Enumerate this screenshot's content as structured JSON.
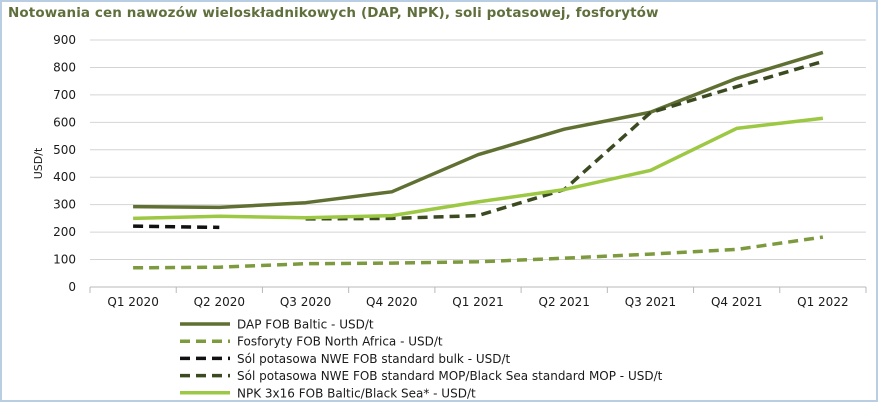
{
  "chart_data": {
    "type": "line",
    "title": "Notowania cen nawozów wieloskładnikowych (DAP, NPK), soli potasowej, fosforytów",
    "ylabel": "USD/t",
    "xlabel": "",
    "ylim": [
      0,
      900
    ],
    "yticks": [
      "0",
      "100",
      "200",
      "300",
      "400",
      "500",
      "600",
      "700",
      "800",
      "900"
    ],
    "categories": [
      "Q1 2020",
      "Q2 2020",
      "Q3 2020",
      "Q4 2020",
      "Q1 2021",
      "Q2 2021",
      "Q3 2021",
      "Q4 2021",
      "Q1 2022"
    ],
    "grid": true,
    "legend_position": "bottom",
    "series": [
      {
        "name": "DAP FOB Baltic - USD/t",
        "color": "#5f7032",
        "dash": "solid",
        "values": [
          293,
          290,
          307,
          347,
          482,
          575,
          637,
          760,
          855
        ]
      },
      {
        "name": "Fosforyty FOB North Africa - USD/t",
        "color": "#7e9a3e",
        "dash": "dashed",
        "values": [
          70,
          72,
          85,
          87,
          92,
          105,
          120,
          137,
          182
        ]
      },
      {
        "name": "Sól potasowa  NWE FOB standard  bulk - USD/t",
        "color": "#111111",
        "dash": "dashed",
        "values": [
          222,
          217,
          null,
          null,
          null,
          null,
          null,
          null,
          null
        ]
      },
      {
        "name": "Sól potasowa  NWE FOB standard  MOP/Black Sea standard MOP - USD/t",
        "color": "#3b4a20",
        "dash": "dashed",
        "values": [
          null,
          null,
          248,
          250,
          260,
          355,
          635,
          730,
          822
        ]
      },
      {
        "name": "NPK 3x16 FOB Baltic/Black Sea* - USD/t",
        "color": "#9cc843",
        "dash": "solid",
        "values": [
          250,
          258,
          252,
          260,
          310,
          355,
          425,
          578,
          615
        ]
      }
    ]
  }
}
